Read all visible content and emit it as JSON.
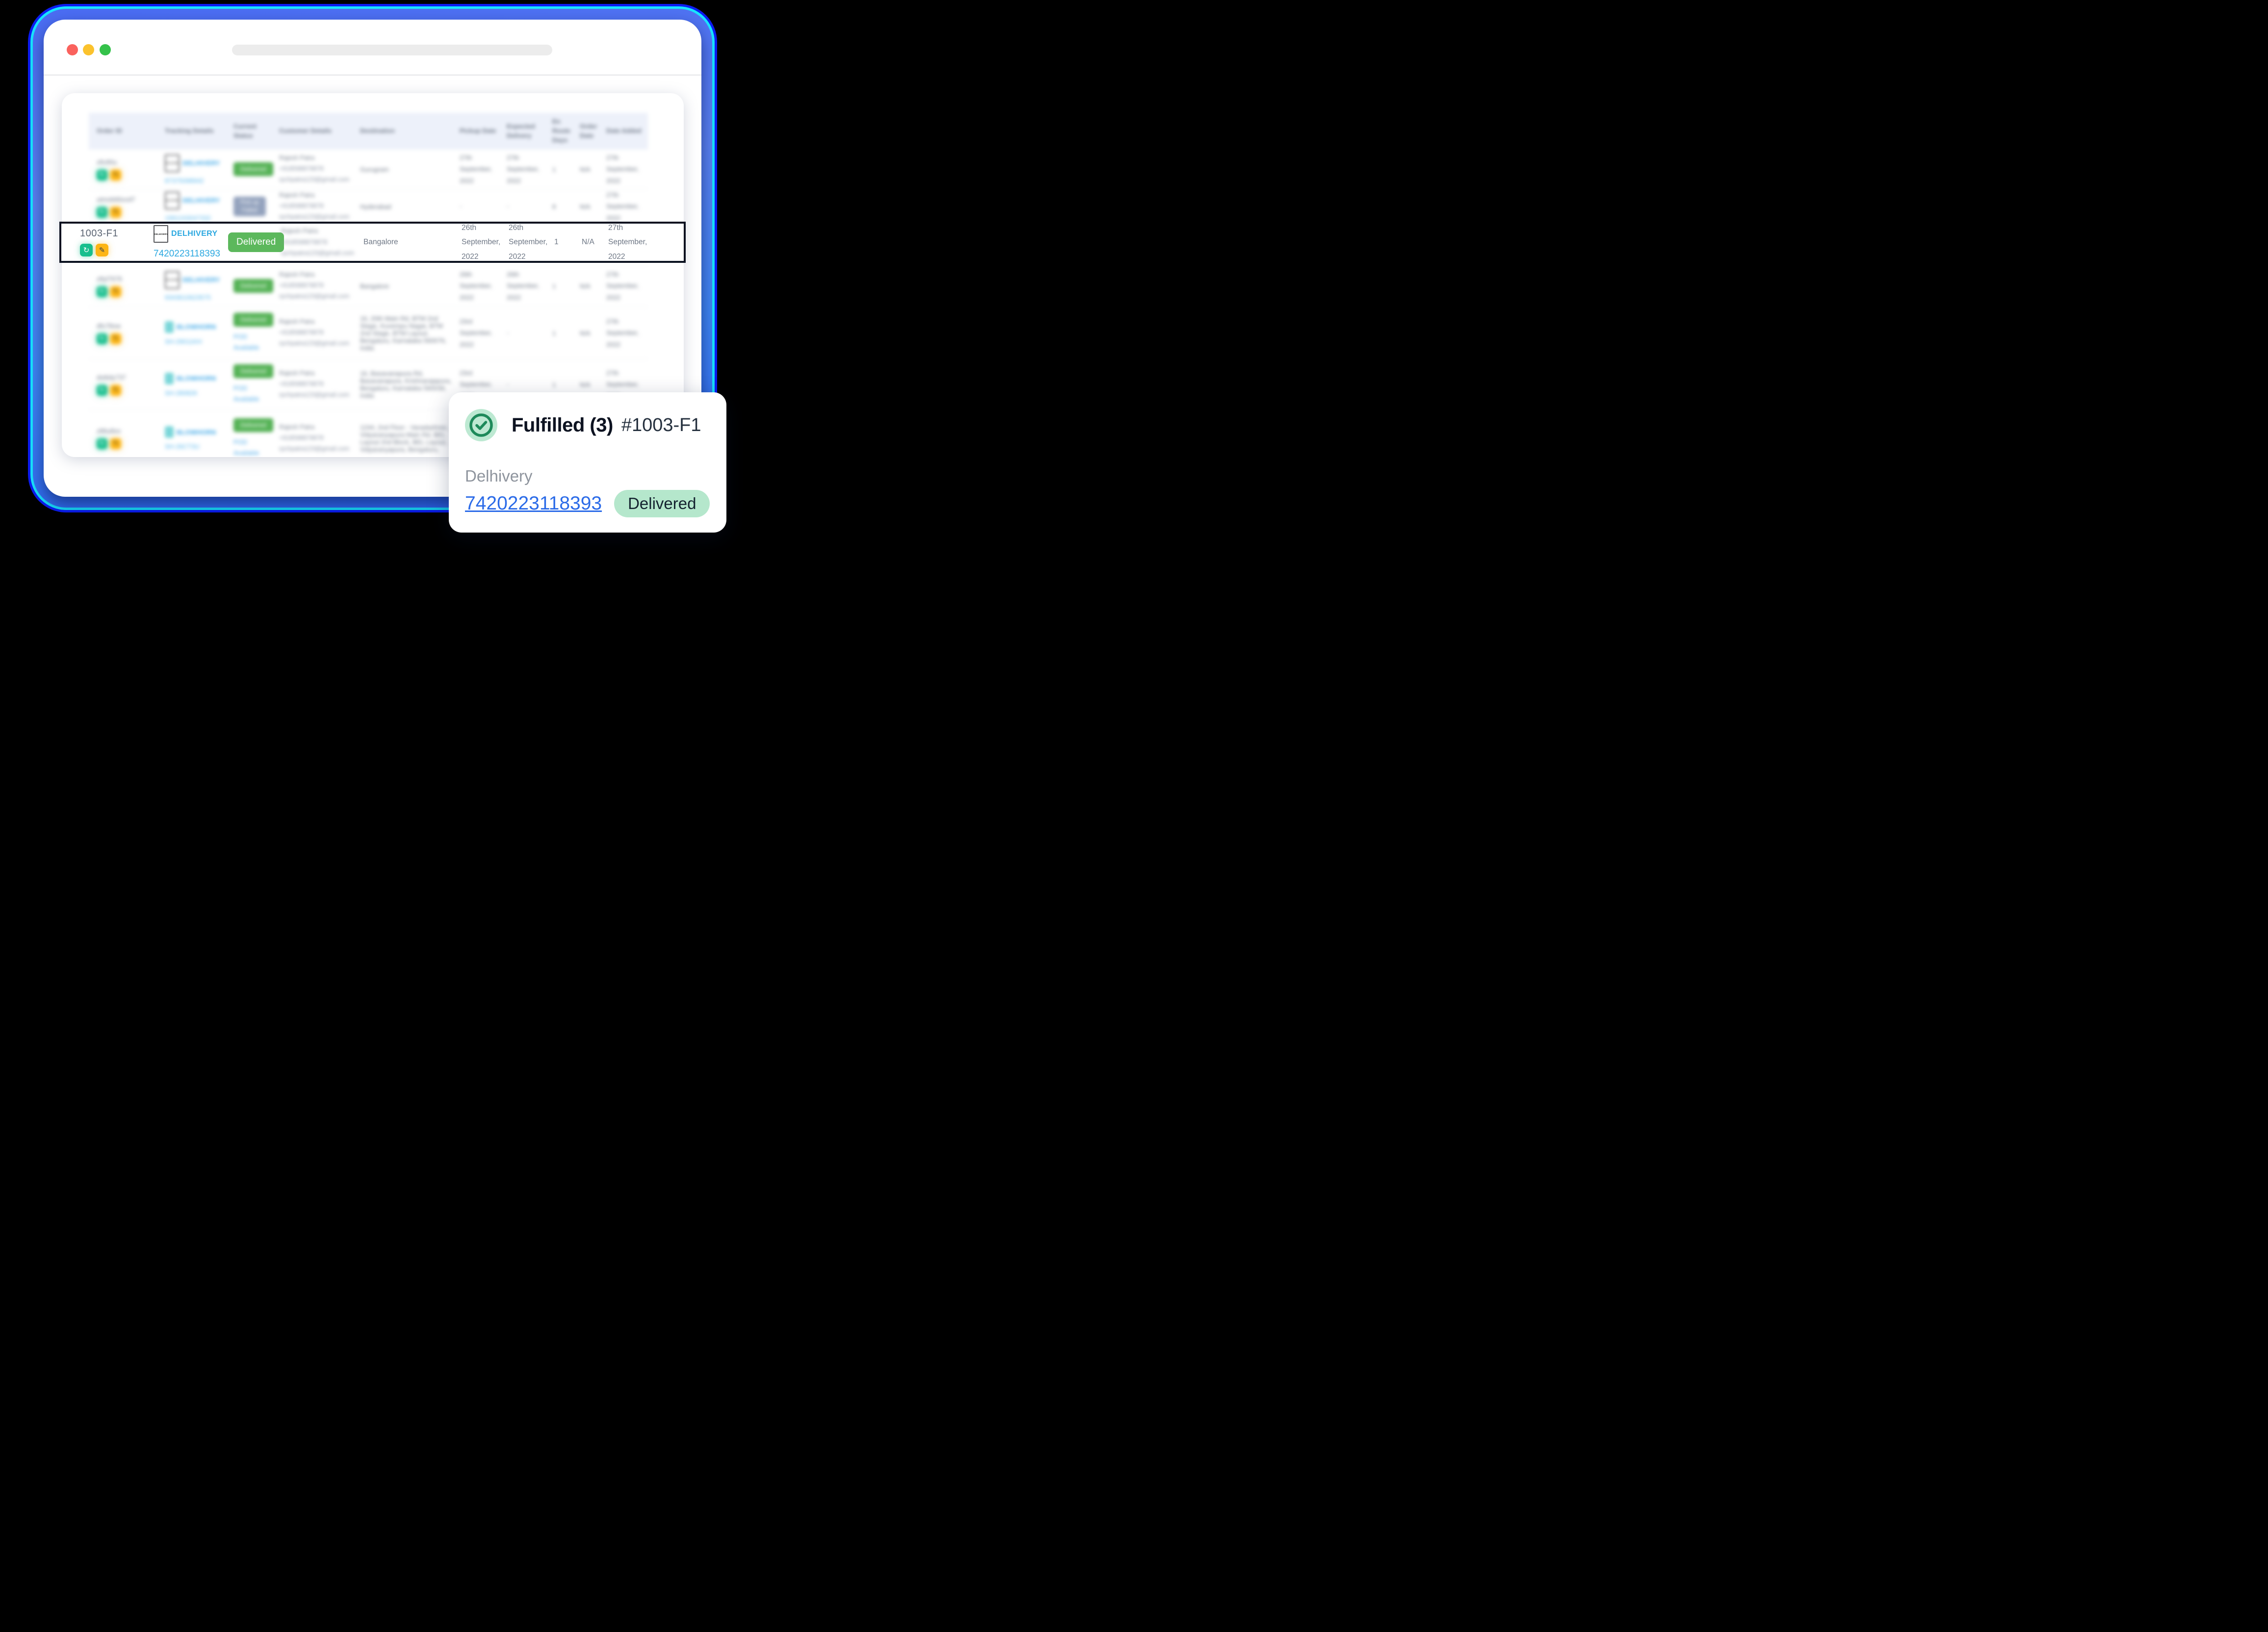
{
  "chrome": {
    "traffic_lights": [
      "#fa625d",
      "#fbc22d",
      "#35c24b"
    ],
    "address_bar_value": ""
  },
  "table": {
    "headers": [
      "Order ID",
      "Tracking Details",
      "Current Status",
      "Customer Details",
      "Destination",
      "Pickup Date",
      "Expected Delivery",
      "En Route Days",
      "Order Date",
      "Date Added"
    ],
    "rows": [
      {
        "order_id": "xfiv90u",
        "carrier": "DELHIVERY",
        "carrier_type": "delhivery",
        "logo_text": "DELHIVERY",
        "tracking_no": "87375098942",
        "status": "Delivered",
        "status_type": "delivered",
        "pod": "",
        "customer": [
          "Rajesh Patra",
          "+918598879878",
          "rpchpatra123@gmail.com"
        ],
        "destination": "Gurugram",
        "pickup_date": "27th September, 2022",
        "expected_delivery": "27th September, 2022",
        "en_route_days": "1",
        "order_date": "N/A",
        "date_added": "27th September, 2022",
        "blurred": true
      },
      {
        "order_id": "utmob66xod7",
        "carrier": "DELHIVERY",
        "carrier_type": "delhivery",
        "logo_text": "DELHIVERY",
        "tracking_no": "1991243047332",
        "status": "Pick up Failed",
        "status_type": "failed",
        "pod": "",
        "customer": [
          "Rajesh Patra",
          "+918598879878",
          "rpchpatra123@gmail.com"
        ],
        "destination": "Hyderabad",
        "pickup_date": "-",
        "expected_delivery": "-",
        "en_route_days": "8",
        "order_date": "N/A",
        "date_added": "27th September, 2022",
        "blurred": true
      },
      {
        "order_id": "1003-F1",
        "carrier": "DELHIVERY",
        "carrier_type": "delhivery",
        "logo_text": "DELHIVERY",
        "tracking_no": "7420223118393",
        "status": "Delivered",
        "status_type": "delivered",
        "pod": "",
        "customer": [
          "Rajesh Patra",
          "+918598879878",
          "rpchpatra123@gmail.com"
        ],
        "destination": "Bangalore",
        "pickup_date": "26th September, 2022",
        "expected_delivery": "26th September, 2022",
        "en_route_days": "1",
        "order_date": "N/A",
        "date_added": "27th September, 2022",
        "blurred": false
      },
      {
        "order_id": "z8yl7676",
        "carrier": "DELHIVERY",
        "carrier_type": "delhivery",
        "logo_text": "DELHIVERY",
        "tracking_no": "9343610623575",
        "status": "Delivered",
        "status_type": "delivered",
        "pod": "",
        "customer": [
          "Rajesh Patra",
          "+918598879878",
          "rpchpatra123@gmail.com"
        ],
        "destination": "Bangalore",
        "pickup_date": "26th September, 2022",
        "expected_delivery": "26th September, 2022",
        "en_route_days": "1",
        "order_date": "N/A",
        "date_added": "27th September, 2022",
        "blurred": true
      },
      {
        "order_id": "dfo78ow",
        "carrier": "BLOWHORN",
        "carrier_type": "blowhorn",
        "logo_text": "",
        "tracking_no": "SH-29011KH",
        "status": "Delivered",
        "status_type": "delivered",
        "pod": "POD Available",
        "customer": [
          "Rajesh Patra",
          "+918598879878",
          "rpchpatra123@gmail.com"
        ],
        "destination": "16, 20th Main Rd, BTM 2nd Stage, Kuvempu Nagar, BTM 2nd Stage, BTM Layout, Bengaluru, Karnataka 560076, India",
        "pickup_date": "23rd September, 2022",
        "expected_delivery": "-",
        "en_route_days": "1",
        "order_date": "N/A",
        "date_added": "27th September, 2022",
        "blurred": true
      },
      {
        "order_id": "dst6dy737",
        "carrier": "BLOWHORN",
        "carrier_type": "blowhorn",
        "logo_text": "",
        "tracking_no": "SH-28082K",
        "status": "Delivered",
        "status_type": "delivered",
        "pod": "POD Available",
        "customer": [
          "Rajesh Patra",
          "+918598879878",
          "rpchpatra123@gmail.com"
        ],
        "destination": "16, Basavanapura Rd, Basavanapura, Krishnarajapura, Bengaluru, Karnataka 560036, India",
        "pickup_date": "23rd September, 2022",
        "expected_delivery": "-",
        "en_route_days": "1",
        "order_date": "N/A",
        "date_added": "27th September, 2022",
        "blurred": true
      },
      {
        "order_id": "z86u8zo",
        "carrier": "BLOWHORN",
        "carrier_type": "blowhorn",
        "logo_text": "",
        "tracking_no": "SH-26CT3U",
        "status": "Delivered",
        "status_type": "delivered",
        "pod": "POD Available",
        "customer": [
          "Rajesh Patra",
          "+918598879878",
          "rpchpatra123@gmail.com"
        ],
        "destination": "1244, 2nd Floor - Varadashree, Vidyaranyapura Main Rd, BEL Layout 2nd Block, BEL Layout, Vidyaranyapura, Bengaluru,",
        "pickup_date": "23rd September, 2022",
        "expected_delivery": "-",
        "en_route_days": "1",
        "order_date": "N/A",
        "date_added": "27th September, 2022",
        "blurred": true
      }
    ],
    "focused_row_index": 2
  },
  "popup": {
    "title": "Fulfilled (3)",
    "order_ref": "#1003-F1",
    "carrier": "Delhivery",
    "tracking_no": "7420223118393",
    "status": "Delivered"
  },
  "icons": {
    "refresh_glyph": "↻",
    "pencil_glyph": "✎",
    "check_icon": "check-circle"
  },
  "colors": {
    "frame_blue": "#3c6df3",
    "frame_cyan": "#19e5ff",
    "frame_deep_blue": "#0c1df2",
    "delivered_green": "#5cb85c",
    "failed_slate": "#93a2bd",
    "action_green": "#17bf8e",
    "action_yellow": "#fdb515",
    "carrier_link_blue": "#2ba8e0",
    "popup_link_blue": "#2b6be8",
    "mint_pill": "#b5e7cc",
    "check_green": "#1e8a5a",
    "header_bg": "#edf1fa",
    "highlight_border": "#0b1220",
    "traffic_red": "#fa625d",
    "traffic_yellow": "#fbc22d",
    "traffic_green": "#35c24b"
  }
}
